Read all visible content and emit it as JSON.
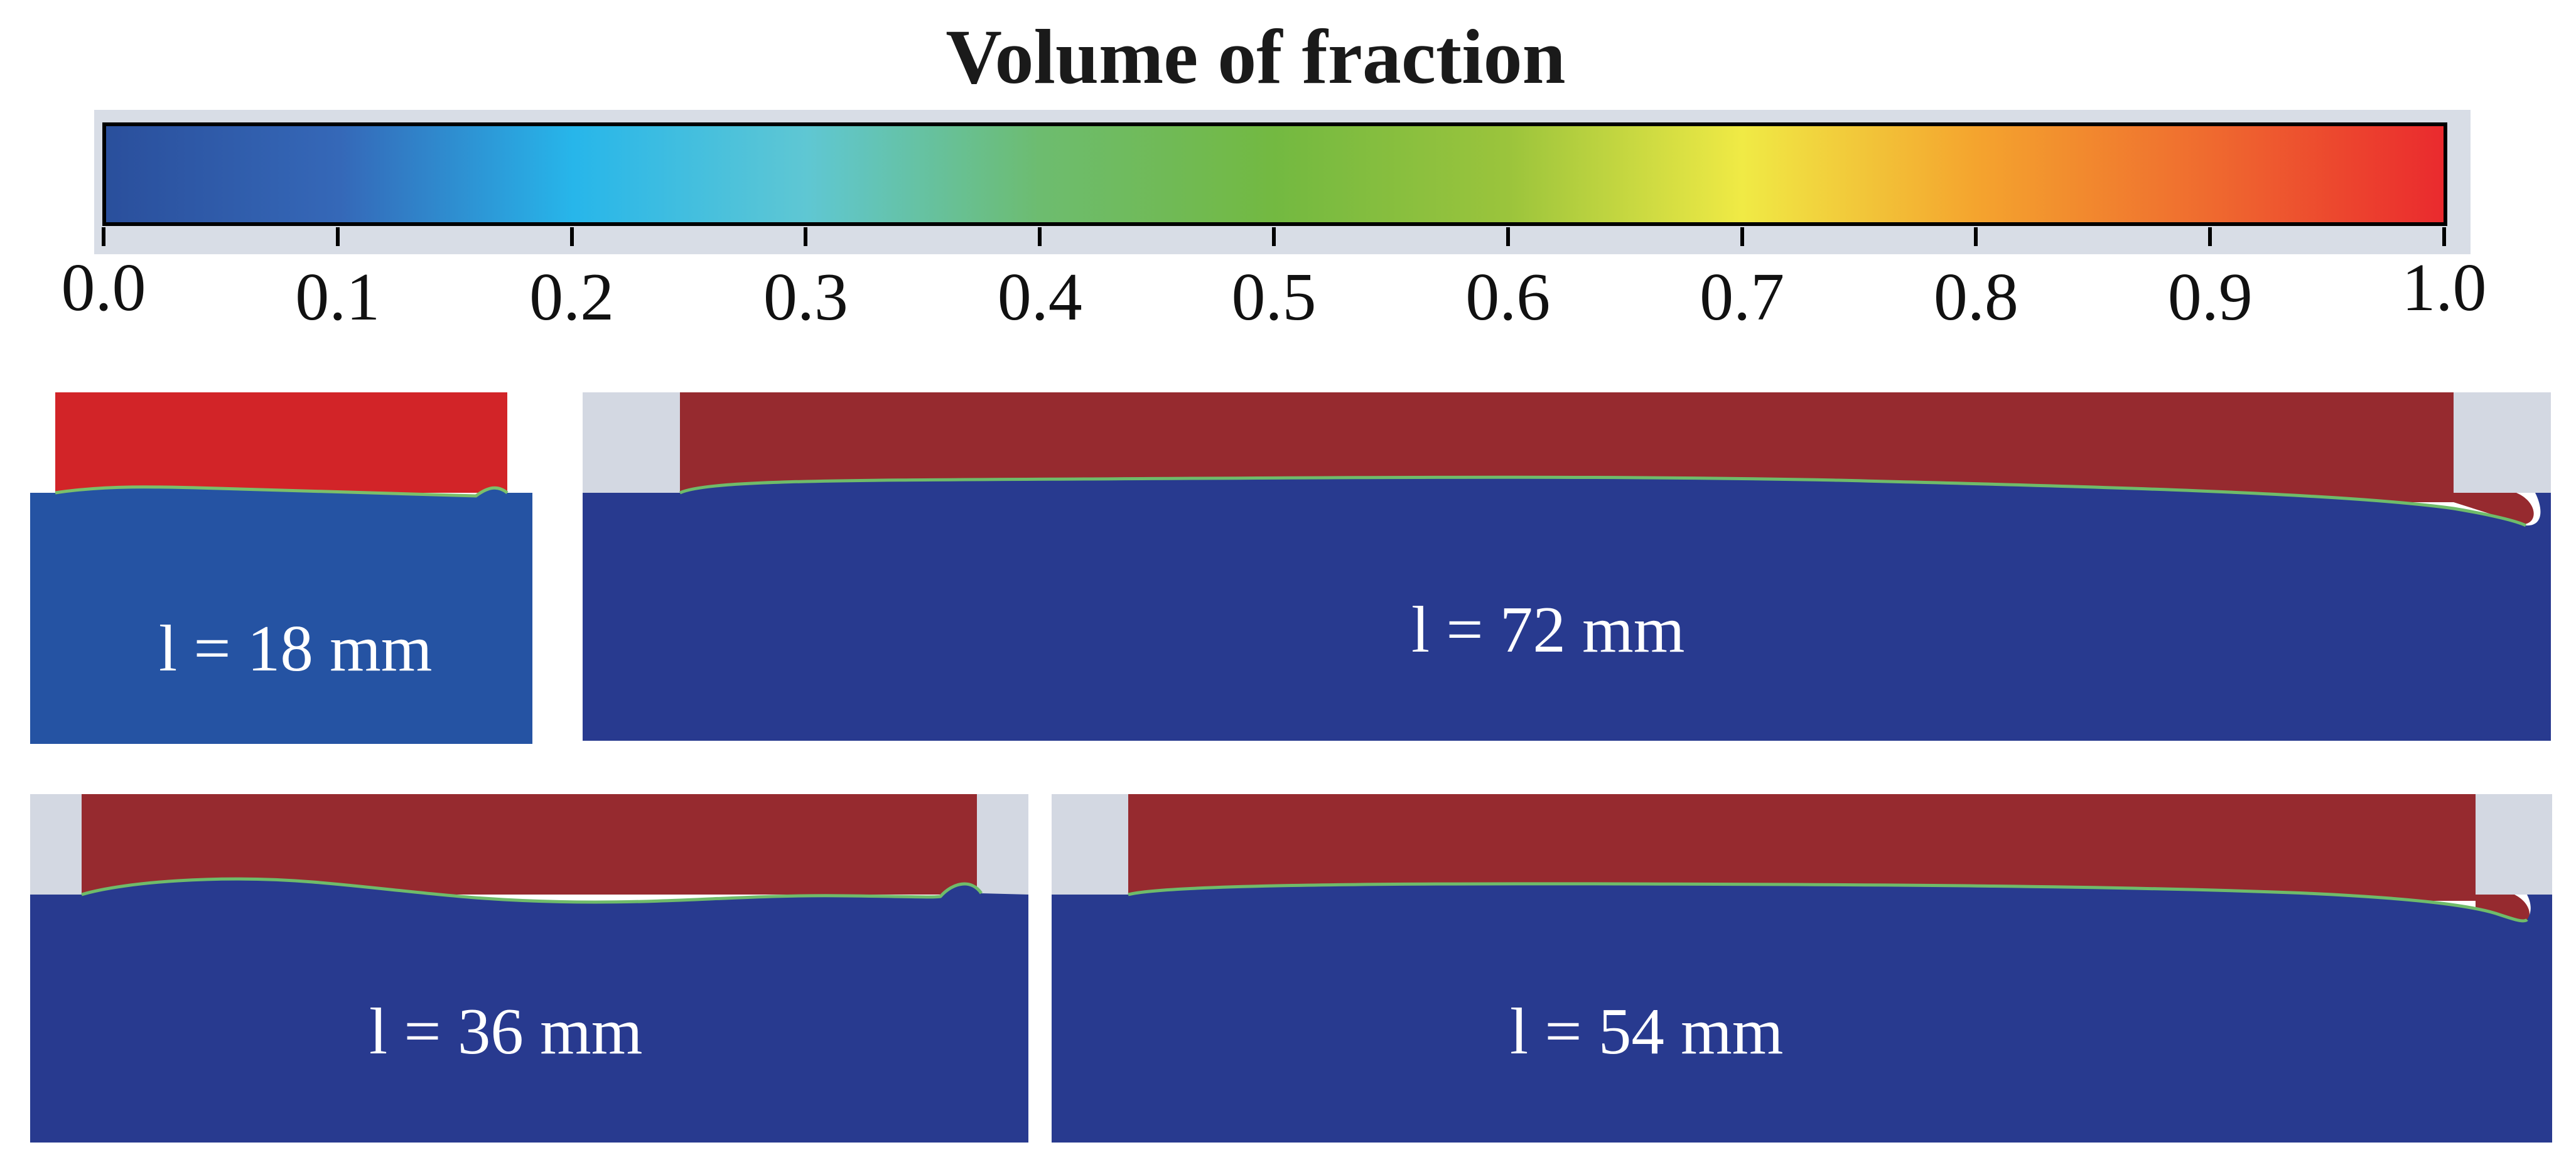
{
  "title": "Volume of fraction",
  "colorbar": {
    "ticks": [
      "0.0",
      "0.1",
      "0.2",
      "0.3",
      "0.4",
      "0.5",
      "0.6",
      "0.7",
      "0.8",
      "0.9",
      "1.0"
    ],
    "colors": [
      "#2a4f9c",
      "#3568b8",
      "#27b6ea",
      "#5fc7d3",
      "#6dbc6f",
      "#73b941",
      "#9bc43c",
      "#f0ea45",
      "#f4a42e",
      "#ef6a2f",
      "#ea2a2e"
    ]
  },
  "panels": {
    "p18": {
      "label": "l = 18 mm",
      "top_color": "#d22428",
      "bottom_color": "#2553a3"
    },
    "p72": {
      "label": "l = 72 mm",
      "top_color": "#962a2f",
      "bottom_color": "#283a8f",
      "wall_color": "#d3d8e2"
    },
    "p36": {
      "label": "l = 36 mm",
      "top_color": "#962a2f",
      "bottom_color": "#283a8f",
      "wall_color": "#d3d8e2"
    },
    "p54": {
      "label": "l = 54 mm",
      "top_color": "#962a2f",
      "bottom_color": "#283a8f",
      "wall_color": "#d3d8e2"
    }
  }
}
